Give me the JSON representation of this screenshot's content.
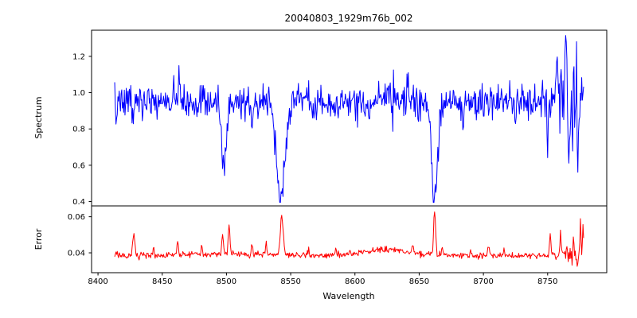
{
  "chart_data": {
    "type": "line",
    "title": "20040803_1929m76b_002",
    "xlabel": "Wavelength",
    "grid": false,
    "legend": "none",
    "x_ticks": [
      8400,
      8450,
      8500,
      8550,
      8600,
      8650,
      8700,
      8750
    ],
    "xlim": [
      8395,
      8796
    ],
    "x_data_range": [
      8413,
      8778
    ],
    "x_step": 0.5,
    "subplots": [
      {
        "name": "spectrum",
        "ylabel": "Spectrum",
        "y_ticks": [
          "0.4",
          "0.6",
          "0.8",
          "1.0",
          "1.2"
        ],
        "y_tick_values": [
          0.4,
          0.6,
          0.8,
          1.0,
          1.2
        ],
        "ylim": [
          0.376,
          1.344
        ],
        "color": "#0000ff",
        "baseline": 0.95,
        "noise_sigma": 0.048,
        "noise_seed": 7,
        "clamp": [
          0.395,
          1.315
        ],
        "noise_boost": {
          "center": 8767,
          "sigma": 11,
          "factor": 1.9
        },
        "absorption_lines": [
          {
            "center": 8498,
            "depth": 0.37,
            "sigma": 1.8,
            "min_value": 0.58
          },
          {
            "center": 8542,
            "depth": 0.54,
            "sigma": 3.2,
            "min_value": 0.41
          },
          {
            "center": 8662,
            "depth": 0.52,
            "sigma": 2.2,
            "min_value": 0.43
          }
        ],
        "spikes": [
          {
            "c": 8414,
            "h": -0.12,
            "s": 0.8
          },
          {
            "c": 8427,
            "h": -0.13,
            "s": 0.6
          },
          {
            "c": 8463,
            "h": 0.16,
            "s": 0.7
          },
          {
            "c": 8520,
            "h": -0.12,
            "s": 0.7
          },
          {
            "c": 8533,
            "h": 0.1,
            "s": 0.6
          },
          {
            "c": 8552,
            "h": 0.08,
            "s": 0.8
          },
          {
            "c": 8611,
            "h": -0.12,
            "s": 0.6
          },
          {
            "c": 8641,
            "h": 0.12,
            "s": 0.6
          },
          {
            "c": 8684,
            "h": -0.15,
            "s": 0.6
          },
          {
            "c": 8725,
            "h": -0.1,
            "s": 0.6
          },
          {
            "c": 8750,
            "h": -0.28,
            "s": 0.6
          },
          {
            "c": 8757,
            "h": 0.2,
            "s": 0.8
          },
          {
            "c": 8764,
            "h": 0.34,
            "s": 0.8
          },
          {
            "c": 8766.5,
            "h": -0.35,
            "s": 0.6
          },
          {
            "c": 8773.5,
            "h": -0.38,
            "s": 0.7
          },
          {
            "c": 8776.5,
            "h": 0.12,
            "s": 0.6
          }
        ],
        "broad_bumps": [
          {
            "c": 8622,
            "h": 0.02,
            "s": 25
          }
        ]
      },
      {
        "name": "error",
        "ylabel": "Error",
        "y_ticks": [
          "0.04",
          "0.06"
        ],
        "y_tick_values": [
          0.04,
          0.06
        ],
        "ylim": [
          0.029,
          0.066
        ],
        "color": "#ff0000",
        "baseline": 0.0385,
        "noise_sigma": 0.0009,
        "noise_seed": 13,
        "clamp": [
          0.0295,
          0.0635
        ],
        "noise_boost": {
          "center": 8768,
          "sigma": 10,
          "factor": 1.5
        },
        "absorption_lines": [],
        "spikes": [
          {
            "c": 8428,
            "h": 0.011,
            "s": 1.2
          },
          {
            "c": 8443,
            "h": 0.004,
            "s": 0.8
          },
          {
            "c": 8462,
            "h": 0.007,
            "s": 0.8
          },
          {
            "c": 8481,
            "h": 0.004,
            "s": 0.7
          },
          {
            "c": 8497,
            "h": 0.01,
            "s": 0.9
          },
          {
            "c": 8502,
            "h": 0.016,
            "s": 0.9
          },
          {
            "c": 8520,
            "h": 0.005,
            "s": 0.7
          },
          {
            "c": 8531,
            "h": 0.006,
            "s": 0.7
          },
          {
            "c": 8543,
            "h": 0.0215,
            "s": 1.6
          },
          {
            "c": 8564,
            "h": 0.004,
            "s": 0.7
          },
          {
            "c": 8585,
            "h": 0.0035,
            "s": 0.7
          },
          {
            "c": 8645,
            "h": 0.004,
            "s": 0.8
          },
          {
            "c": 8662,
            "h": 0.0245,
            "s": 1.1
          },
          {
            "c": 8668,
            "h": 0.005,
            "s": 0.7
          },
          {
            "c": 8690,
            "h": 0.004,
            "s": 0.7
          },
          {
            "c": 8704,
            "h": 0.005,
            "s": 0.7
          },
          {
            "c": 8716,
            "h": 0.004,
            "s": 0.7
          },
          {
            "c": 8752,
            "h": 0.013,
            "s": 0.8
          },
          {
            "c": 8760,
            "h": 0.012,
            "s": 0.7
          },
          {
            "c": 8765,
            "h": 0.006,
            "s": 0.6
          },
          {
            "c": 8770,
            "h": 0.01,
            "s": 0.6
          },
          {
            "c": 8773,
            "h": -0.007,
            "s": 0.6
          },
          {
            "c": 8775.5,
            "h": 0.016,
            "s": 0.6
          },
          {
            "c": 8777.5,
            "h": 0.018,
            "s": 0.6
          }
        ],
        "broad_bumps": [
          {
            "c": 8622,
            "h": 0.0035,
            "s": 22
          },
          {
            "c": 8500,
            "h": 0.001,
            "s": 30
          }
        ]
      }
    ]
  }
}
